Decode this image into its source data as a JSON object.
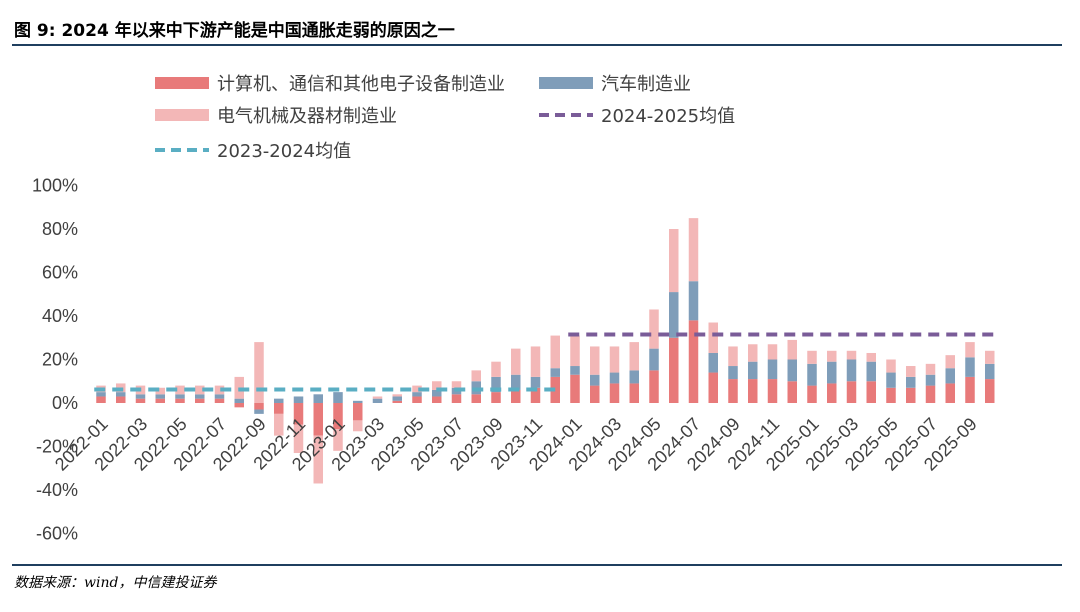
{
  "title": "图 9: 2024 年以来中下游产能是中国通胀走弱的原因之一",
  "source": "数据来源：wind，中信建投证券",
  "chart_data": {
    "type": "bar",
    "stacked": true,
    "title": "图 9: 2024 年以来中下游产能是中国通胀走弱的原因之一",
    "xlabel": "",
    "ylabel": "",
    "ylim": [
      -60,
      100
    ],
    "yticks": [
      -60,
      -40,
      -20,
      0,
      20,
      40,
      60,
      80,
      100
    ],
    "ytick_labels": [
      "-60%",
      "-40%",
      "-20%",
      "0%",
      "20%",
      "40%",
      "60%",
      "80%",
      "100%"
    ],
    "categories": [
      "2022-01",
      "2022-02",
      "2022-03",
      "2022-04",
      "2022-05",
      "2022-06",
      "2022-07",
      "2022-08",
      "2022-09",
      "2022-10",
      "2022-11",
      "2022-12",
      "2023-01",
      "2023-02",
      "2023-03",
      "2023-04",
      "2023-05",
      "2023-06",
      "2023-07",
      "2023-08",
      "2023-09",
      "2023-10",
      "2023-11",
      "2023-12",
      "2024-01",
      "2024-02",
      "2024-03",
      "2024-04",
      "2024-05",
      "2024-06",
      "2024-07",
      "2024-08",
      "2024-09",
      "2024-10",
      "2024-11",
      "2024-12",
      "2025-01",
      "2025-02",
      "2025-03",
      "2025-04",
      "2025-05",
      "2025-06",
      "2025-07",
      "2025-08",
      "2025-09",
      "2025-10"
    ],
    "xtick_labels": [
      "2022-01",
      "2022-03",
      "2022-05",
      "2022-07",
      "2022-09",
      "2022-11",
      "2023-01",
      "2023-03",
      "2023-05",
      "2023-07",
      "2023-09",
      "2023-11",
      "2024-01",
      "2024-03",
      "2024-05",
      "2024-07",
      "2024-09",
      "2024-11",
      "2025-01",
      "2025-03",
      "2025-05",
      "2025-07",
      "2025-09"
    ],
    "series": [
      {
        "name": "计算机、通信和其他电子设备制造业",
        "color": "#e87a7a",
        "values": [
          3,
          3,
          2,
          2,
          2,
          2,
          2,
          -2,
          -3,
          -5,
          -10,
          -15,
          -12,
          -8,
          0,
          1,
          3,
          3,
          4,
          4,
          5,
          6,
          7,
          12,
          13,
          8,
          9,
          9,
          15,
          30,
          38,
          14,
          11,
          11,
          11,
          10,
          8,
          9,
          10,
          10,
          7,
          7,
          8,
          9,
          12,
          11
        ]
      },
      {
        "name": "汽车制造业",
        "color": "#7f9db9",
        "values": [
          2,
          2,
          2,
          2,
          2,
          2,
          2,
          2,
          -2,
          2,
          3,
          4,
          5,
          1,
          2,
          2,
          2,
          3,
          3,
          6,
          7,
          7,
          5,
          4,
          4,
          5,
          5,
          6,
          10,
          21,
          18,
          9,
          6,
          8,
          9,
          10,
          10,
          10,
          10,
          9,
          7,
          5,
          5,
          7,
          9,
          7
        ]
      },
      {
        "name": "电气机械及器材制造业",
        "color": "#f3b7b7",
        "values": [
          3,
          4,
          4,
          3,
          4,
          4,
          4,
          10,
          28,
          -10,
          -13,
          -22,
          -10,
          -5,
          1,
          1,
          3,
          4,
          3,
          5,
          7,
          12,
          14,
          15,
          14,
          13,
          12,
          13,
          18,
          29,
          29,
          14,
          9,
          8,
          7,
          9,
          6,
          5,
          4,
          4,
          6,
          5,
          5,
          6,
          7,
          6
        ]
      }
    ],
    "reference_lines": [
      {
        "name": "2024-2025均值",
        "value": 31.5,
        "from": "2024-01",
        "to": "2025-10",
        "color": "#7a5c98",
        "style": "dashed"
      },
      {
        "name": "2023-2024均值",
        "value": 6.2,
        "from": "2022-01",
        "to": "2023-12",
        "color": "#5aaec3",
        "style": "dashed"
      }
    ],
    "legend": {
      "placement": "top",
      "entries": [
        "计算机、通信和其他电子设备制造业",
        "汽车制造业",
        "电气机械及器材制造业",
        "2024-2025均值",
        "2023-2024均值"
      ]
    },
    "grid": false
  }
}
